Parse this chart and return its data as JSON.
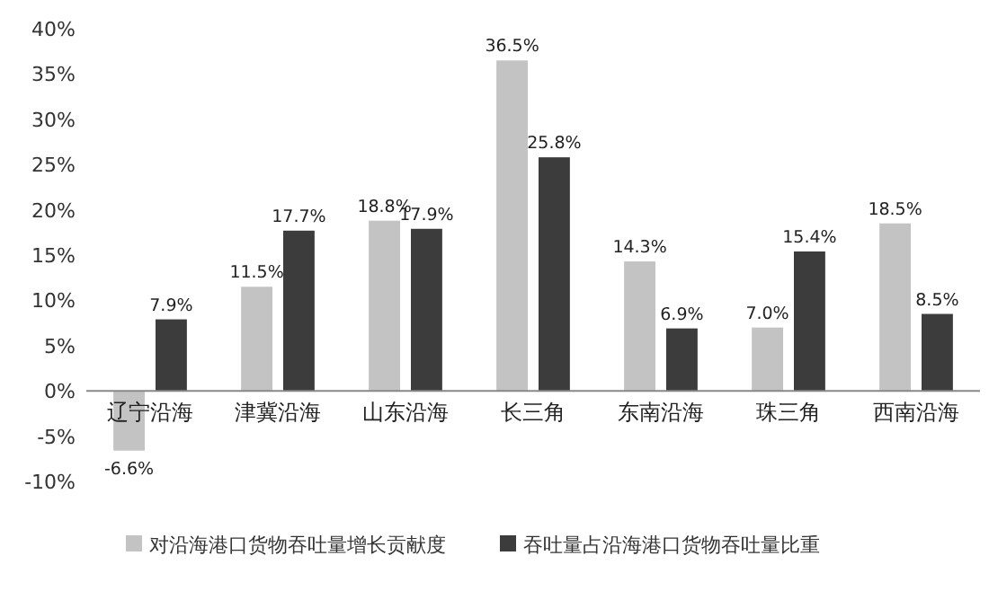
{
  "chart_data": {
    "type": "bar",
    "categories": [
      "辽宁沿海",
      "津冀沿海",
      "山东沿海",
      "长三角",
      "东南沿海",
      "珠三角",
      "西南沿海"
    ],
    "series": [
      {
        "name": "对沿海港口货物吞吐量增长贡献度",
        "color": "#c3c3c3",
        "values": [
          -6.6,
          11.5,
          18.8,
          36.5,
          14.3,
          7.0,
          18.5
        ],
        "value_labels": [
          "-6.6%",
          "11.5%",
          "18.8%",
          "36.5%",
          "14.3%",
          "7.0%",
          "18.5%"
        ]
      },
      {
        "name": "吞吐量占沿海港口货物吞吐量比重",
        "color": "#3c3c3c",
        "values": [
          7.9,
          17.7,
          17.9,
          25.8,
          6.9,
          15.4,
          8.5
        ],
        "value_labels": [
          "7.9%",
          "17.7%",
          "17.9%",
          "25.8%",
          "6.9%",
          "15.4%",
          "8.5%"
        ]
      }
    ],
    "ylim": [
      -10,
      40
    ],
    "yticks": [
      {
        "value": -10,
        "label": "-10%"
      },
      {
        "value": -5,
        "label": "-5%"
      },
      {
        "value": 0,
        "label": "0%"
      },
      {
        "value": 5,
        "label": "5%"
      },
      {
        "value": 10,
        "label": "10%"
      },
      {
        "value": 15,
        "label": "15%"
      },
      {
        "value": 20,
        "label": "20%"
      },
      {
        "value": 25,
        "label": "25%"
      },
      {
        "value": 30,
        "label": "30%"
      },
      {
        "value": 35,
        "label": "35%"
      },
      {
        "value": 40,
        "label": "40%"
      }
    ],
    "grid": false,
    "legend": "bottom"
  }
}
